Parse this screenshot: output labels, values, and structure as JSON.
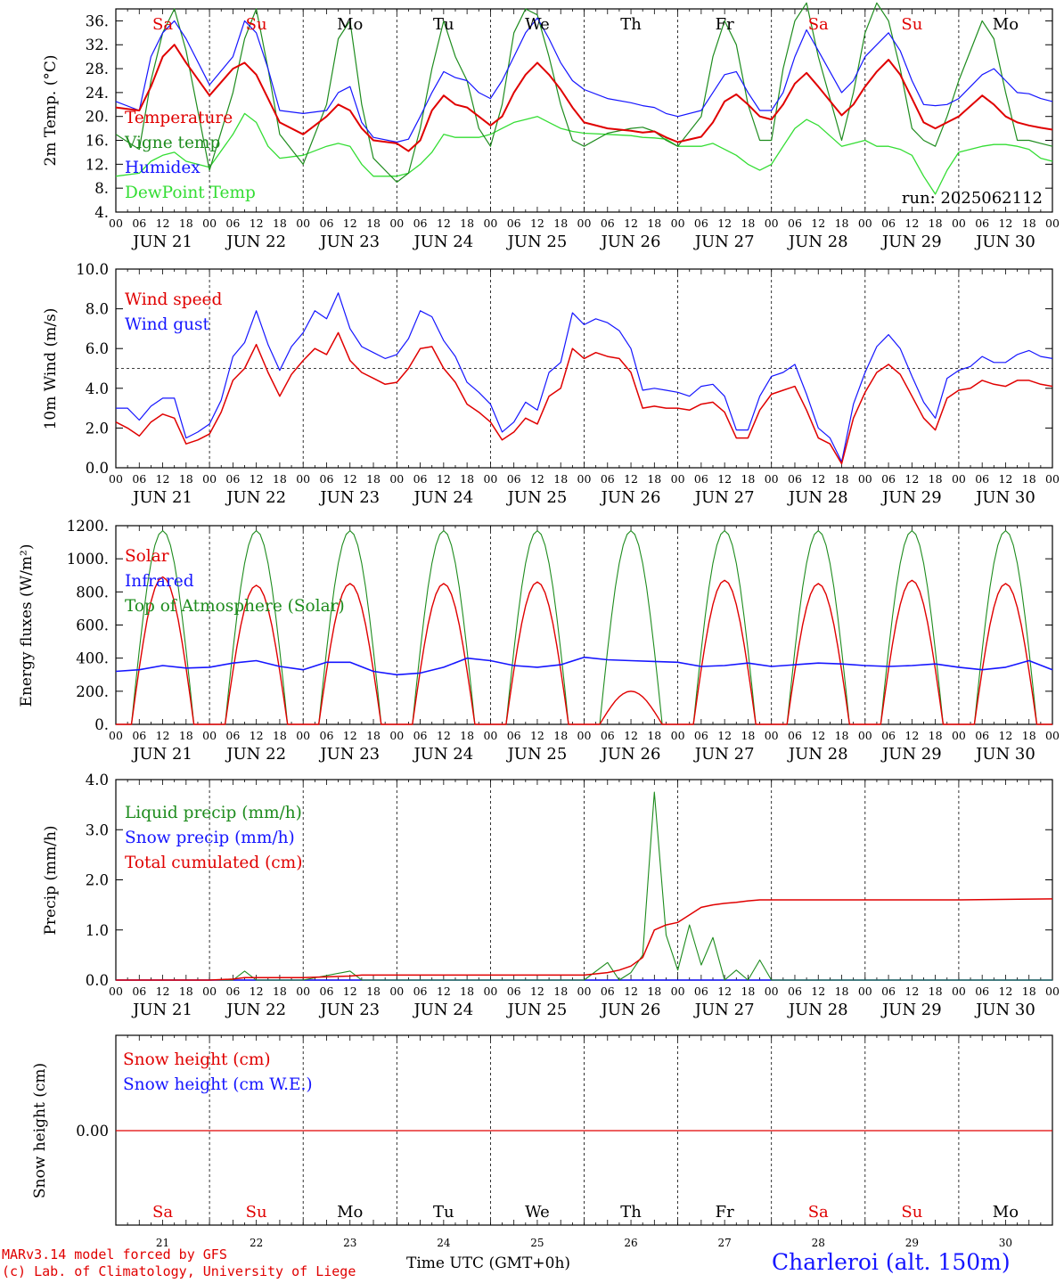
{
  "footer": {
    "credit_line1": "MARv3.14 model forced by GFS",
    "credit_line2": "(c) Lab. of Climatology, University of Liege",
    "axis_title": "Time UTC (GMT+0h)",
    "station": "Charleroi (alt. 150m)"
  },
  "colors": {
    "red": "#e00000",
    "green": "#1e8c1e",
    "blue": "#1515ff",
    "lime": "#33dd33",
    "grid": "#777777"
  },
  "days": {
    "date_labels": [
      "JUN 21",
      "JUN 22",
      "JUN 23",
      "JUN 24",
      "JUN 25",
      "JUN 26",
      "JUN 27",
      "JUN 28",
      "JUN 29",
      "JUN 30"
    ],
    "weekday_labels": [
      "Sa",
      "Su",
      "Mo",
      "Tu",
      "We",
      "Th",
      "Fr",
      "Sa",
      "Su",
      "Mo"
    ],
    "weekday_colors": [
      "red",
      "red",
      "black",
      "black",
      "black",
      "black",
      "black",
      "red",
      "red",
      "black"
    ],
    "day_numbers": [
      "21",
      "22",
      "23",
      "24",
      "25",
      "26",
      "27",
      "28",
      "29",
      "30"
    ],
    "hour_ticks": [
      "00",
      "06",
      "12",
      "18"
    ],
    "last_tick": "00"
  },
  "chart_data": [
    {
      "type": "line",
      "ylabel": "2m Temp. (°C)",
      "ylim": [
        4,
        38
      ],
      "y_ticks": [
        "4.",
        "8.",
        "12.",
        "16.",
        "20.",
        "24.",
        "28.",
        "32.",
        "36."
      ],
      "annotation": "run: 2025062112",
      "x": [
        0,
        6,
        9,
        12,
        15,
        18,
        24,
        30,
        33,
        36,
        39,
        42,
        48,
        54,
        57,
        60,
        63,
        66,
        72,
        75,
        78,
        81,
        84,
        87,
        90,
        93,
        96,
        99,
        102,
        105,
        108,
        111,
        114,
        117,
        120,
        126,
        132,
        135,
        138,
        141,
        144,
        150,
        153,
        156,
        159,
        162,
        165,
        168,
        171,
        174,
        177,
        180,
        186,
        189,
        192,
        195,
        198,
        201,
        204,
        207,
        210,
        213,
        216,
        222,
        225,
        228,
        231,
        234,
        237,
        240
      ],
      "series": [
        {
          "name": "Temperature",
          "color": "red",
          "values": [
            21.5,
            21,
            25,
            30,
            32,
            29,
            23.5,
            28,
            29,
            27,
            23,
            19,
            17,
            20,
            22,
            21,
            18,
            16,
            15.5,
            14.2,
            16,
            21,
            23.5,
            22,
            21.5,
            20,
            18.5,
            20,
            24,
            27,
            29,
            27,
            24.5,
            21.5,
            19,
            18,
            17.6,
            17.3,
            17.5,
            16.5,
            15.7,
            16.6,
            19,
            22.5,
            23.7,
            22,
            20,
            19.5,
            22,
            25.5,
            27.3,
            25,
            20.2,
            22,
            25,
            27.5,
            29.5,
            27,
            23,
            19,
            18,
            19,
            20,
            23.5,
            22,
            20,
            19,
            18.5,
            18.1,
            17.8
          ]
        },
        {
          "name": "Vigne temp",
          "color": "green",
          "values": [
            17,
            14.5,
            26,
            34,
            38,
            31,
            11,
            24,
            33,
            38,
            28,
            17,
            12,
            22,
            33,
            36,
            22,
            13,
            9,
            10.5,
            18,
            28,
            36,
            30,
            26,
            18,
            15,
            22,
            34,
            38,
            37,
            30,
            22,
            16,
            15,
            17.2,
            18,
            18.2,
            17.5,
            16,
            15,
            20,
            30,
            36,
            32,
            22,
            16,
            16,
            28,
            36,
            39,
            30,
            16,
            24,
            34,
            39,
            36,
            28,
            18,
            16,
            15,
            20,
            26,
            36,
            33,
            24,
            16,
            16,
            15.5,
            15
          ]
        },
        {
          "name": "Humidex",
          "color": "blue",
          "values": [
            22.5,
            21,
            30,
            34,
            36,
            33,
            25.3,
            30,
            36,
            34,
            28,
            21,
            20.5,
            21,
            24,
            25,
            19,
            16.5,
            15.7,
            16.2,
            20,
            24,
            27.5,
            26.5,
            26,
            24,
            23,
            26,
            30,
            34,
            36.5,
            33,
            29,
            26,
            24.5,
            23,
            22.3,
            21.8,
            21.5,
            20.5,
            20,
            21,
            24,
            27,
            27.5,
            24,
            21,
            21,
            24,
            30,
            34.5,
            31,
            24,
            26,
            30,
            32,
            34,
            31,
            26,
            22,
            21.8,
            22,
            23,
            27,
            28,
            26,
            24,
            23.8,
            23,
            22.5
          ]
        },
        {
          "name": "DewPoint Temp",
          "color": "lime",
          "values": [
            10,
            10.5,
            12.5,
            13.5,
            14,
            12.5,
            11.5,
            17,
            20.5,
            19,
            15,
            13,
            13.5,
            15,
            15.5,
            15,
            12,
            10,
            10,
            10.5,
            12,
            14,
            17,
            16.5,
            16.5,
            16.5,
            17,
            18,
            19,
            19.5,
            20,
            19,
            18,
            17.5,
            17.2,
            17,
            16.8,
            16.5,
            16.4,
            16.2,
            15,
            15,
            15.5,
            14.5,
            13.5,
            12,
            11,
            12,
            15,
            18,
            19.5,
            18.5,
            15,
            15.5,
            16,
            15,
            15,
            14.5,
            13.5,
            10,
            7,
            11,
            14,
            15,
            15.3,
            15.3,
            15,
            14.5,
            13,
            12.5
          ]
        }
      ]
    },
    {
      "type": "line",
      "ylabel": "10m Wind (m/s)",
      "ylim": [
        0,
        10
      ],
      "y_ticks": [
        "0.0",
        "2.0",
        "4.0",
        "6.0",
        "8.0",
        "10.0"
      ],
      "reference_line": 5,
      "x": [
        0,
        3,
        6,
        9,
        12,
        15,
        18,
        21,
        24,
        27,
        30,
        33,
        36,
        39,
        42,
        45,
        48,
        51,
        54,
        57,
        60,
        63,
        66,
        69,
        72,
        75,
        78,
        81,
        84,
        87,
        90,
        93,
        96,
        99,
        102,
        105,
        108,
        111,
        114,
        117,
        120,
        123,
        126,
        129,
        132,
        135,
        138,
        141,
        144,
        147,
        150,
        153,
        156,
        159,
        162,
        165,
        168,
        171,
        174,
        177,
        180,
        183,
        186,
        189,
        192,
        195,
        198,
        201,
        204,
        207,
        210,
        213,
        216,
        219,
        222,
        225,
        228,
        231,
        234,
        237,
        240
      ],
      "series": [
        {
          "name": "Wind speed",
          "color": "red",
          "values": [
            2.3,
            2,
            1.6,
            2.3,
            2.7,
            2.5,
            1.2,
            1.4,
            1.7,
            2.8,
            4.4,
            5,
            6.2,
            4.8,
            3.6,
            4.7,
            5.4,
            6,
            5.7,
            6.8,
            5.4,
            4.8,
            4.5,
            4.2,
            4.3,
            5,
            6,
            6.1,
            5,
            4.3,
            3.2,
            2.8,
            2.3,
            1.4,
            1.8,
            2.5,
            2.2,
            3.6,
            4,
            6,
            5.5,
            5.8,
            5.6,
            5.5,
            4.8,
            3,
            3.1,
            3,
            3,
            2.9,
            3.2,
            3.3,
            2.8,
            1.5,
            1.5,
            2.9,
            3.7,
            3.9,
            4.1,
            2.9,
            1.5,
            1.2,
            0.2,
            2.5,
            3.8,
            4.8,
            5.2,
            4.7,
            3.6,
            2.5,
            1.9,
            3.5,
            3.9,
            4,
            4.4,
            4.2,
            4.1,
            4.4,
            4.4,
            4.2,
            4.1
          ]
        },
        {
          "name": "Wind gust",
          "color": "blue",
          "values": [
            3,
            3,
            2.4,
            3.1,
            3.5,
            3.5,
            1.5,
            1.8,
            2.2,
            3.4,
            5.6,
            6.3,
            7.9,
            6.2,
            4.9,
            6.1,
            6.8,
            7.9,
            7.5,
            8.8,
            7,
            6.1,
            5.8,
            5.5,
            5.7,
            6.5,
            7.9,
            7.6,
            6.4,
            5.6,
            4.3,
            3.8,
            3.2,
            1.8,
            2.3,
            3.3,
            2.9,
            4.8,
            5.3,
            7.8,
            7.2,
            7.5,
            7.3,
            6.9,
            6,
            3.9,
            4,
            3.9,
            3.8,
            3.6,
            4.1,
            4.2,
            3.6,
            1.9,
            1.9,
            3.6,
            4.6,
            4.8,
            5.2,
            3.7,
            2,
            1.5,
            0.3,
            3.2,
            4.8,
            6.1,
            6.7,
            6,
            4.6,
            3.3,
            2.5,
            4.5,
            4.9,
            5.1,
            5.6,
            5.3,
            5.3,
            5.7,
            5.9,
            5.6,
            5.5
          ]
        }
      ]
    },
    {
      "type": "line",
      "ylabel": "Energy fluxes (W/m²)",
      "ylim": [
        0,
        1200
      ],
      "y_ticks": [
        "0.",
        "200.",
        "400.",
        "600.",
        "800.",
        "1000.",
        "1200."
      ],
      "toa_peak": 1170,
      "daylight_hours": [
        4,
        20
      ],
      "x": [
        0,
        6,
        12,
        18,
        24,
        30,
        36,
        42,
        48,
        54,
        60,
        66,
        72,
        78,
        84,
        90,
        96,
        102,
        108,
        114,
        120,
        126,
        132,
        138,
        144,
        150,
        156,
        162,
        168,
        174,
        180,
        186,
        192,
        198,
        204,
        210,
        216,
        222,
        228,
        234,
        240
      ],
      "series": [
        {
          "name": "Solar",
          "color": "red",
          "daily_peaks": [
            890,
            840,
            850,
            850,
            860,
            200,
            870,
            850,
            870,
            850
          ]
        },
        {
          "name": "Infrared",
          "color": "blue",
          "values": [
            320,
            330,
            355,
            340,
            345,
            370,
            385,
            350,
            330,
            375,
            375,
            320,
            300,
            310,
            345,
            400,
            385,
            355,
            345,
            360,
            405,
            390,
            385,
            380,
            375,
            350,
            355,
            370,
            350,
            360,
            370,
            365,
            355,
            350,
            355,
            365,
            345,
            330,
            345,
            385,
            330
          ]
        },
        {
          "name": "Top of Atmosphere (Solar)",
          "color": "green",
          "daily_peaks": [
            1170,
            1170,
            1170,
            1170,
            1170,
            1170,
            1170,
            1170,
            1170,
            1170
          ]
        }
      ]
    },
    {
      "type": "line",
      "ylabel": "Precip (mm/h)",
      "ylim": [
        0,
        4
      ],
      "y_ticks": [
        "0.0",
        "1.0",
        "2.0",
        "3.0",
        "4.0"
      ],
      "x": [
        0,
        24,
        30,
        33,
        36,
        42,
        48,
        60,
        63,
        66,
        72,
        96,
        120,
        126,
        129,
        132,
        135,
        138,
        141,
        144,
        147,
        150,
        153,
        156,
        159,
        162,
        165,
        168,
        171,
        174,
        177,
        180,
        186,
        192,
        216,
        240
      ],
      "series": [
        {
          "name": "Liquid precip (mm/h)",
          "color": "green",
          "values": [
            0,
            0,
            0,
            0.18,
            0,
            0,
            0,
            0.18,
            0,
            0,
            0,
            0,
            0,
            0.35,
            0,
            0.15,
            0.5,
            3.75,
            0.9,
            0.2,
            1.1,
            0.3,
            0.85,
            0,
            0.2,
            0,
            0.4,
            0,
            0,
            0,
            0,
            0,
            0,
            0,
            0,
            0
          ]
        },
        {
          "name": "Snow precip (mm/h)",
          "color": "blue",
          "values": [
            0,
            0,
            0,
            0,
            0,
            0,
            0,
            0,
            0,
            0,
            0,
            0,
            0,
            0,
            0,
            0,
            0,
            0,
            0,
            0,
            0,
            0,
            0,
            0,
            0,
            0,
            0,
            0,
            0,
            0,
            0,
            0,
            0,
            0,
            0,
            0
          ]
        },
        {
          "name": "Total cumulated (cm)",
          "color": "red",
          "values": [
            0,
            0,
            0.02,
            0.05,
            0.05,
            0.05,
            0.05,
            0.08,
            0.1,
            0.1,
            0.1,
            0.1,
            0.1,
            0.15,
            0.2,
            0.28,
            0.45,
            1.0,
            1.1,
            1.15,
            1.3,
            1.45,
            1.5,
            1.53,
            1.55,
            1.58,
            1.6,
            1.6,
            1.6,
            1.6,
            1.6,
            1.6,
            1.6,
            1.6,
            1.6,
            1.62
          ]
        }
      ]
    },
    {
      "type": "line",
      "ylabel": "Snow height (cm)",
      "y_ticks": [
        "0.00"
      ],
      "x": [
        0,
        240
      ],
      "series": [
        {
          "name": "Snow height (cm)",
          "color": "red",
          "values": [
            0,
            0
          ]
        },
        {
          "name": "Snow height (cm W.E.)",
          "color": "blue",
          "values": [
            0,
            0
          ]
        }
      ]
    }
  ]
}
